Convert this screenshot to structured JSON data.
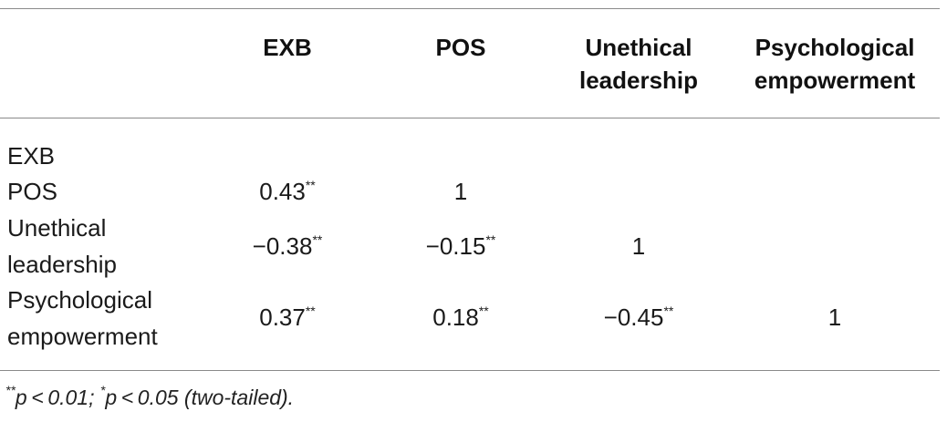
{
  "table": {
    "headers": {
      "col1": "EXB",
      "col2": "POS",
      "col3_line1": "Unethical",
      "col3_line2": "leadership",
      "col4_line1": "Psychological",
      "col4_line2": "empowerment"
    },
    "rows": [
      {
        "label_line1": "EXB",
        "label_line2": "",
        "cells": []
      },
      {
        "label_line1": "POS",
        "label_line2": "",
        "cells": [
          {
            "value": "0.43",
            "sig": "**"
          },
          {
            "value": "1",
            "sig": ""
          }
        ]
      },
      {
        "label_line1": "Unethical",
        "label_line2": "leadership",
        "cells": [
          {
            "value": "−0.38",
            "sig": "**"
          },
          {
            "value": "−0.15",
            "sig": "**"
          },
          {
            "value": "1",
            "sig": ""
          }
        ]
      },
      {
        "label_line1": "Psychological",
        "label_line2": "empowerment",
        "cells": [
          {
            "value": "0.37",
            "sig": "**"
          },
          {
            "value": "0.18",
            "sig": "**"
          },
          {
            "value": "−0.45",
            "sig": "**"
          },
          {
            "value": "1",
            "sig": ""
          }
        ]
      }
    ],
    "footnote": {
      "sig1": "**",
      "text1": "p < 0.01; ",
      "sig2": "*",
      "text2": "p < 0.05 (two-tailed)."
    }
  }
}
